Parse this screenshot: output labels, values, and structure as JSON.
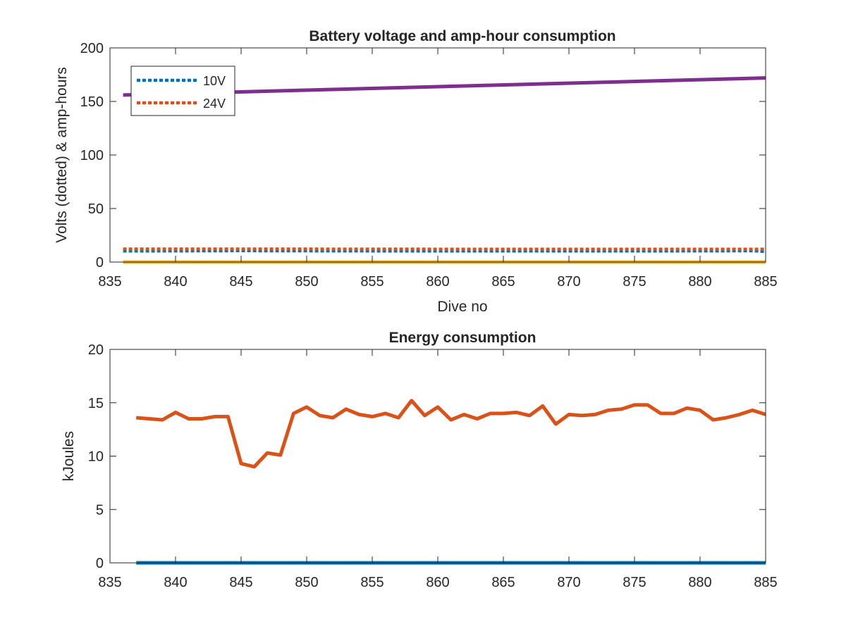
{
  "chart_data": [
    {
      "type": "line",
      "title": "Battery voltage and amp-hour consumption",
      "xlabel": "Dive no",
      "ylabel": "Volts (dotted) & amp-hours",
      "xlim": [
        835,
        885
      ],
      "ylim": [
        0,
        200
      ],
      "xticks": [
        835,
        840,
        845,
        850,
        855,
        860,
        865,
        870,
        875,
        880,
        885
      ],
      "yticks": [
        0,
        50,
        100,
        150,
        200
      ],
      "grid": false,
      "legend": {
        "placement": "top-left"
      },
      "series": [
        {
          "name": "10V",
          "style": "dotted",
          "color": "#0072BD",
          "x": [
            836,
            845,
            855,
            865,
            875,
            884,
            885
          ],
          "values": [
            10.3,
            10.6,
            10.4,
            10.3,
            10.3,
            10.5,
            9.9
          ]
        },
        {
          "name": "24V",
          "style": "dotted",
          "color": "#D95319",
          "x": [
            836,
            845,
            855,
            865,
            875,
            885
          ],
          "values": [
            12.2,
            12.2,
            12.1,
            12.0,
            12.0,
            12.0
          ]
        },
        {
          "name": "",
          "style": "solid",
          "color": "#EDB120",
          "x": [
            836,
            885
          ],
          "values": [
            0,
            0
          ]
        },
        {
          "name": "",
          "style": "solid",
          "color": "#7E2F8E",
          "x": [
            836,
            885
          ],
          "values": [
            156,
            172
          ]
        }
      ]
    },
    {
      "type": "line",
      "title": "Energy consumption",
      "xlabel": "",
      "ylabel": "kJoules",
      "xlim": [
        835,
        885
      ],
      "ylim": [
        0,
        20
      ],
      "xticks": [
        835,
        840,
        845,
        850,
        855,
        860,
        865,
        870,
        875,
        880,
        885
      ],
      "yticks": [
        0,
        5,
        10,
        15,
        20
      ],
      "grid": false,
      "series": [
        {
          "name": "",
          "style": "solid",
          "color": "#0072BD",
          "x": [
            837,
            885
          ],
          "values": [
            0,
            0
          ]
        },
        {
          "name": "",
          "style": "solid",
          "color": "#D95319",
          "x": [
            837,
            838,
            839,
            840,
            841,
            842,
            843,
            844,
            845,
            846,
            847,
            848,
            849,
            850,
            851,
            852,
            853,
            854,
            855,
            856,
            857,
            858,
            859,
            860,
            861,
            862,
            863,
            864,
            865,
            866,
            867,
            868,
            869,
            870,
            871,
            872,
            873,
            874,
            875,
            876,
            877,
            878,
            879,
            880,
            881,
            882,
            883,
            884,
            885
          ],
          "values": [
            13.6,
            13.5,
            13.4,
            14.1,
            13.5,
            13.5,
            13.7,
            13.7,
            9.3,
            9.0,
            10.3,
            10.1,
            14.0,
            14.6,
            13.8,
            13.6,
            14.4,
            13.9,
            13.7,
            14.0,
            13.6,
            15.2,
            13.8,
            14.6,
            13.4,
            13.9,
            13.5,
            14.0,
            14.0,
            14.1,
            13.8,
            14.7,
            13.0,
            13.9,
            13.8,
            13.9,
            14.3,
            14.4,
            14.8,
            14.8,
            14.0,
            14.0,
            14.5,
            14.3,
            13.4,
            13.6,
            13.9,
            14.3,
            13.9
          ]
        }
      ]
    }
  ]
}
